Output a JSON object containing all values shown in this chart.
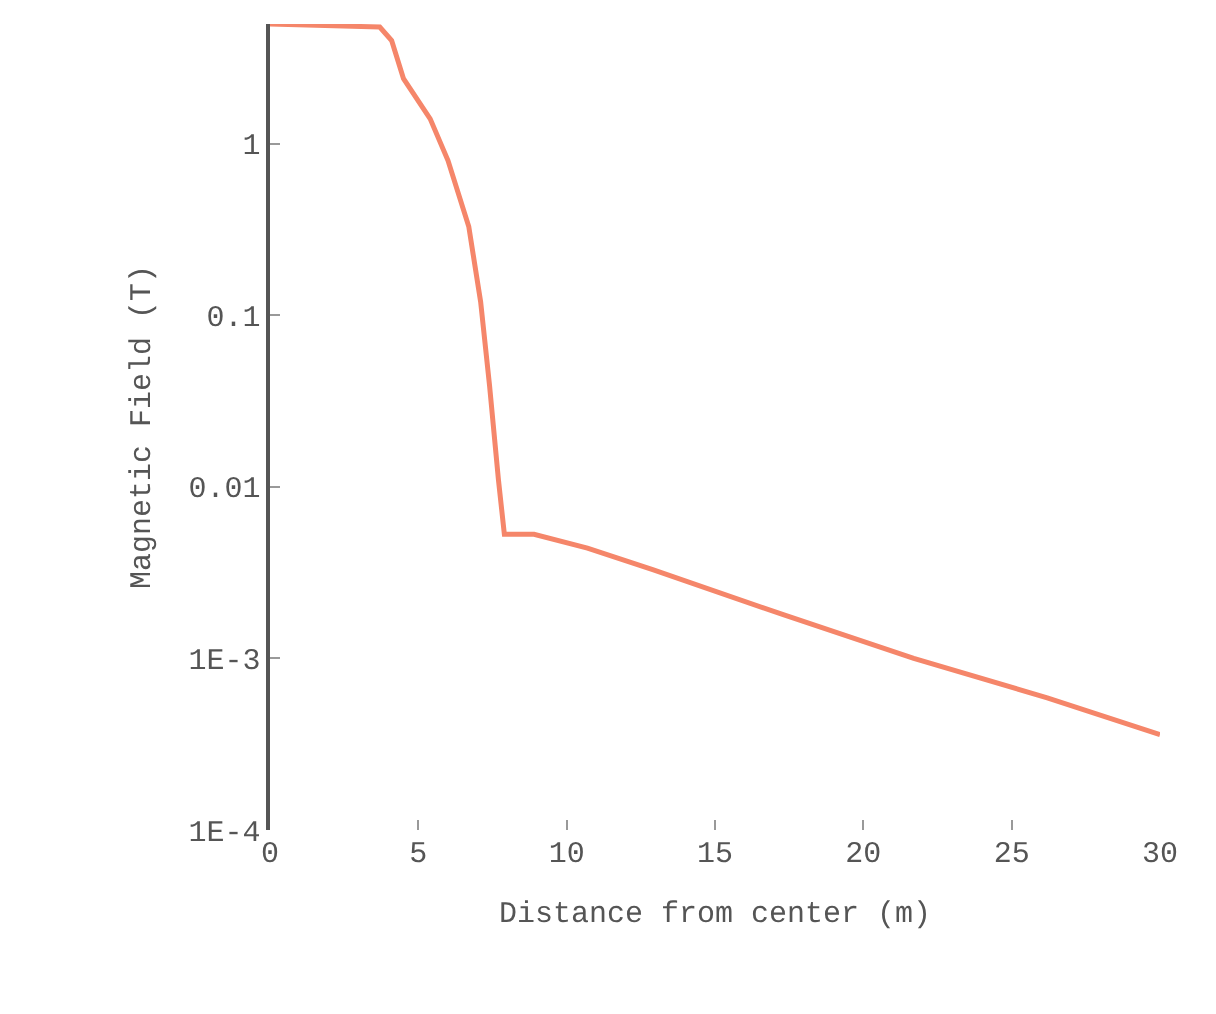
{
  "chart_data": {
    "type": "line",
    "xlabel": "Distance from center (m)",
    "ylabel": "Magnetic Field (T)",
    "x": [
      0,
      3.7,
      4.1,
      4.5,
      5.4,
      6.0,
      6.7,
      7.1,
      7.4,
      7.7,
      7.9,
      8.9,
      10.7,
      12.9,
      17.3,
      21.7,
      26.2,
      30
    ],
    "series": [
      {
        "color": "#f5866a",
        "values": [
          5,
          4.8,
          4.0,
          2.4,
          1.4,
          0.8,
          0.33,
          0.12,
          0.039,
          0.011,
          0.0053,
          0.0053,
          0.0044,
          0.0033,
          0.0018,
          0.001,
          0.00059,
          0.00036
        ]
      }
    ],
    "log": "y",
    "xlim": [
      0,
      30
    ],
    "ylim": [
      0.0001,
      5
    ],
    "xticks": [
      0,
      5,
      10,
      15,
      20,
      25,
      30
    ],
    "yticks": [
      {
        "value": 1,
        "label": "1"
      },
      {
        "value": 0.1,
        "label": "0.1"
      },
      {
        "value": 0.01,
        "label": "0.01"
      },
      {
        "value": 0.001,
        "label": "1E-3"
      },
      {
        "value": 0.0001,
        "label": "1E-4"
      }
    ],
    "legend": false,
    "marker": "none",
    "line_style": "solid"
  }
}
